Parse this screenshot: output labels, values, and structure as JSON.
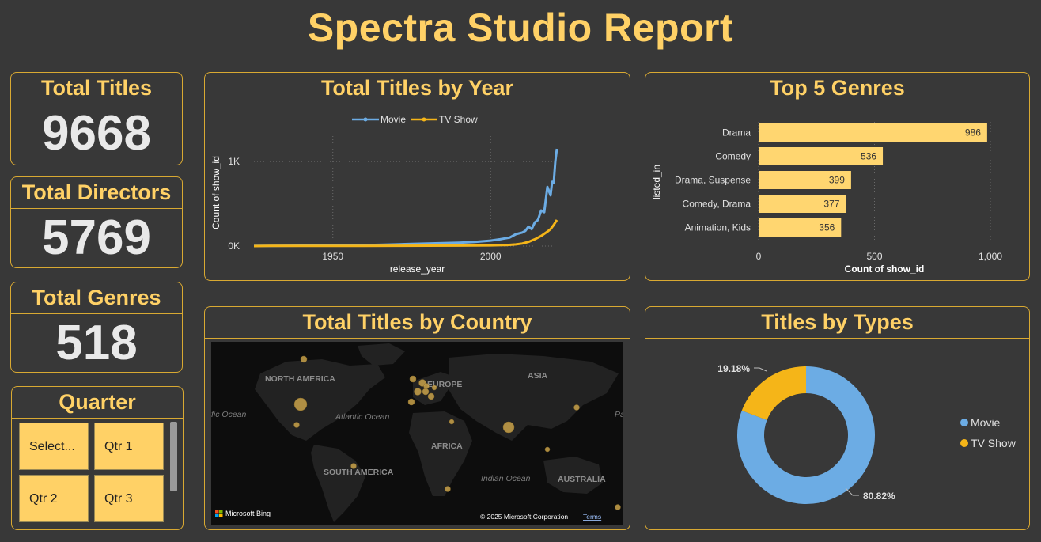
{
  "report_title": "Spectra Studio Report",
  "kpis": {
    "titles": {
      "label": "Total Titles",
      "value": "9668"
    },
    "directors": {
      "label": "Total Directors",
      "value": "5769"
    },
    "genres": {
      "label": "Total Genres",
      "value": "518"
    }
  },
  "slicer": {
    "title": "Quarter",
    "options": [
      "Select...",
      "Qtr 1",
      "Qtr 2",
      "Qtr 3"
    ]
  },
  "line_card": {
    "title": "Total Titles by Year"
  },
  "bar_card": {
    "title": "Top 5 Genres"
  },
  "map_card": {
    "title": "Total Titles by Country",
    "labels": {
      "north_america": "NORTH AMERICA",
      "south_america": "SOUTH AMERICA",
      "europe": "EUROPE",
      "asia": "ASIA",
      "africa": "AFRICA",
      "australia": "AUSTRALIA",
      "atlantic": "Atlantic Ocean",
      "indian": "Indian Ocean",
      "pacific_left": "fic Ocean",
      "pacific_right": "Pa"
    },
    "bing_label": "Microsoft Bing",
    "copyright": "© 2025 Microsoft Corporation",
    "terms": "Terms",
    "bubble_color": "#c9a24a"
  },
  "donut_card": {
    "title": "Titles by Types"
  },
  "colors": {
    "accent": "#ffd166",
    "border": "#d9a932",
    "movie": "#6cace4",
    "tv": "#f5b518",
    "bar": "#ffd670",
    "background": "#383838"
  },
  "chart_data": [
    {
      "type": "line",
      "title": "Total Titles by Year",
      "xlabel": "release_year",
      "ylabel": "Count of show_id",
      "xlim": [
        1925,
        2021
      ],
      "ylim": [
        0,
        1300
      ],
      "x_ticks": [
        1950,
        2000
      ],
      "y_ticks": [
        {
          "value": 0,
          "label": "0K"
        },
        {
          "value": 1000,
          "label": "1K"
        }
      ],
      "legend": "top-center",
      "grid": true,
      "series": [
        {
          "name": "Movie",
          "color": "#6cace4",
          "x": [
            1925,
            1930,
            1935,
            1940,
            1945,
            1950,
            1955,
            1960,
            1965,
            1970,
            1975,
            1980,
            1985,
            1990,
            1995,
            2000,
            2003,
            2006,
            2008,
            2010,
            2011,
            2012,
            2013,
            2014,
            2015,
            2016,
            2017,
            2018,
            2019,
            2019.5,
            2020,
            2020.5,
            2021
          ],
          "y": [
            3,
            3,
            4,
            5,
            5,
            8,
            10,
            12,
            15,
            20,
            25,
            30,
            35,
            40,
            50,
            65,
            80,
            100,
            140,
            160,
            180,
            230,
            200,
            280,
            310,
            420,
            400,
            700,
            600,
            760,
            750,
            1000,
            1150
          ]
        },
        {
          "name": "TV Show",
          "color": "#f5b518",
          "x": [
            1925,
            1930,
            1940,
            1950,
            1960,
            1970,
            1980,
            1990,
            2000,
            2005,
            2008,
            2010,
            2012,
            2014,
            2016,
            2018,
            2019,
            2020,
            2021
          ],
          "y": [
            0,
            2,
            2,
            3,
            3,
            4,
            5,
            6,
            8,
            12,
            20,
            30,
            50,
            80,
            120,
            170,
            200,
            250,
            310
          ]
        }
      ]
    },
    {
      "type": "bar",
      "orientation": "horizontal",
      "title": "Top 5 Genres",
      "xlabel": "Count of show_id",
      "ylabel": "listed_in",
      "categories": [
        "Drama",
        "Comedy",
        "Drama, Suspense",
        "Comedy, Drama",
        "Animation, Kids"
      ],
      "values": [
        986,
        536,
        399,
        377,
        356
      ],
      "xlim": [
        0,
        1000
      ],
      "x_ticks": [
        {
          "value": 0,
          "label": "0"
        },
        {
          "value": 500,
          "label": "500"
        },
        {
          "value": 1000,
          "label": "1,000"
        }
      ],
      "grid": true
    },
    {
      "type": "pie",
      "variant": "donut",
      "title": "Titles by Types",
      "labels": [
        "Movie",
        "TV Show"
      ],
      "values": [
        80.82,
        19.18
      ],
      "value_labels": [
        "80.82%",
        "19.18%"
      ],
      "colors": [
        "#6cace4",
        "#f5b518"
      ],
      "legend": "right"
    }
  ]
}
